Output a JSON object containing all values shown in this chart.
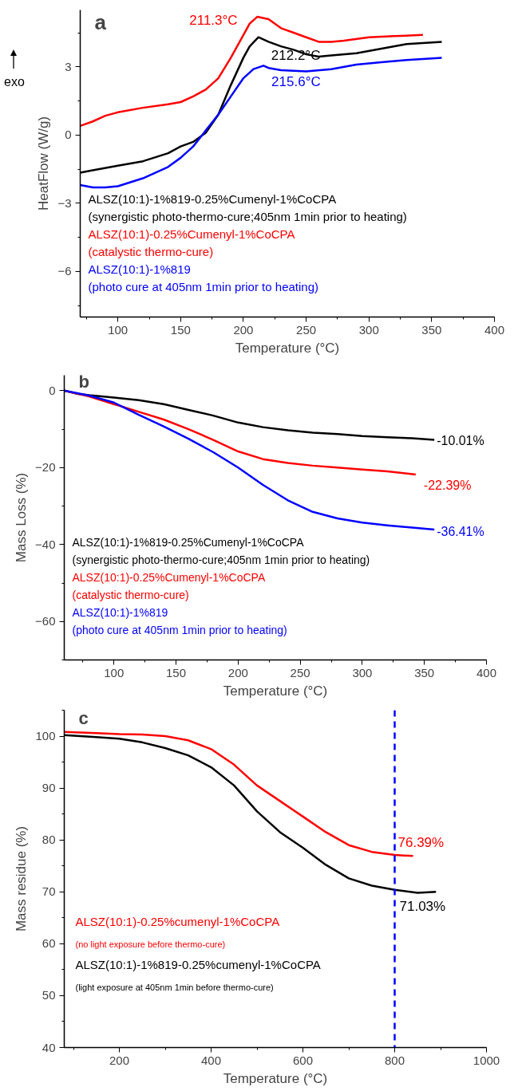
{
  "chart_data": [
    {
      "type": "line",
      "title": "a",
      "xlabel": "Temperature (°C)",
      "ylabel": "HeatFlow (W/g)",
      "xlim": [
        70,
        400
      ],
      "ylim": [
        -8,
        5.5
      ],
      "xticks": [
        100,
        150,
        200,
        250,
        300,
        350,
        400
      ],
      "yticks": [
        -6,
        -3,
        0,
        3
      ],
      "grid": false,
      "marker": "none",
      "line_style": "solid",
      "annotations": [
        {
          "text": "211.3°C",
          "x": 211,
          "y": 5.2
        },
        {
          "text": "212.2°C",
          "x": 212,
          "y": 4.3
        },
        {
          "text": "215.6°C",
          "x": 216,
          "y": 3.05
        },
        "exo"
      ],
      "series": [
        {
          "name": "ALSZ(10:1)-1%819-0.25%Cumenyl-1%CoCPA\n(synergistic photo-thermo-cure;405nm 1min prior to heating)",
          "color": "#000000",
          "x": [
            70,
            80,
            100,
            120,
            140,
            150,
            160,
            170,
            180,
            190,
            200,
            205,
            212,
            220,
            230,
            240,
            250,
            260,
            270,
            290,
            310,
            330,
            358
          ],
          "values": [
            -1.65,
            -1.55,
            -1.35,
            -1.15,
            -0.8,
            -0.5,
            -0.3,
            0.1,
            0.9,
            2.2,
            3.4,
            3.9,
            4.3,
            4.1,
            3.9,
            3.75,
            3.55,
            3.45,
            3.5,
            3.6,
            3.8,
            4.0,
            4.1
          ]
        },
        {
          "name": "ALSZ(10:1)-0.25%Cumenyl-1%CoCPA\n(catalystic thermo-cure)",
          "color": "#ff0000",
          "x": [
            70,
            80,
            90,
            100,
            120,
            140,
            150,
            160,
            170,
            180,
            190,
            200,
            205,
            211,
            220,
            230,
            240,
            250,
            260,
            270,
            280,
            300,
            320,
            343
          ],
          "values": [
            0.4,
            0.6,
            0.85,
            1.0,
            1.2,
            1.35,
            1.45,
            1.7,
            2.0,
            2.5,
            3.4,
            4.4,
            4.9,
            5.2,
            5.1,
            4.7,
            4.5,
            4.3,
            4.1,
            4.1,
            4.15,
            4.3,
            4.35,
            4.4
          ]
        },
        {
          "name": "ALSZ(10:1)-1%819\n(photo cure at 405nm 1min prior to heating)",
          "color": "#0000ff",
          "x": [
            70,
            80,
            90,
            100,
            120,
            140,
            150,
            160,
            170,
            180,
            190,
            200,
            208,
            216,
            220,
            230,
            250,
            270,
            290,
            310,
            330,
            358
          ],
          "values": [
            -2.2,
            -2.3,
            -2.3,
            -2.25,
            -1.9,
            -1.4,
            -1.0,
            -0.5,
            0.2,
            0.9,
            1.7,
            2.5,
            2.9,
            3.05,
            2.95,
            2.85,
            2.8,
            2.9,
            3.1,
            3.2,
            3.3,
            3.4
          ]
        }
      ]
    },
    {
      "type": "line",
      "title": "b",
      "xlabel": "Temperature (°C)",
      "ylabel": "Mass Loss (%)",
      "xlim": [
        60,
        400
      ],
      "ylim": [
        -70,
        4
      ],
      "xticks": [
        100,
        150,
        200,
        250,
        300,
        350,
        400
      ],
      "yticks": [
        -60,
        -40,
        -20,
        0
      ],
      "grid": false,
      "marker": "none",
      "line_style": "solid",
      "annotations": [
        {
          "text": "-10.01%",
          "x": 358,
          "y": -12.8
        },
        {
          "text": "-22.39%",
          "x": 343,
          "y": -21.8
        },
        {
          "text": "-36.41%",
          "x": 358,
          "y": -36.1
        }
      ],
      "series": [
        {
          "name": "ALSZ(10:1)-1%819-0.25%Cumenyl-1%CoCPA\n(synergistic photo-thermo-cure;405nm 1min prior to heating)",
          "color": "#000000",
          "x": [
            60,
            70,
            80,
            100,
            120,
            140,
            160,
            180,
            200,
            220,
            240,
            260,
            280,
            300,
            320,
            340,
            358
          ],
          "values": [
            0,
            -0.8,
            -1.2,
            -1.8,
            -2.5,
            -3.5,
            -5,
            -6.5,
            -8.3,
            -9.5,
            -10.3,
            -10.9,
            -11.3,
            -11.8,
            -12.1,
            -12.4,
            -12.8
          ]
        },
        {
          "name": "ALSZ(10:1)-0.25%Cumenyl-1%CoCPA\n(catalystic thermo-cure)",
          "color": "#ff0000",
          "x": [
            60,
            80,
            100,
            120,
            140,
            160,
            180,
            200,
            220,
            240,
            260,
            280,
            300,
            320,
            343
          ],
          "values": [
            0,
            -1.5,
            -3.5,
            -5.5,
            -7.5,
            -10,
            -12.8,
            -15.8,
            -17.8,
            -18.8,
            -19.5,
            -20.0,
            -20.5,
            -21.0,
            -21.8
          ]
        },
        {
          "name": "ALSZ(10:1)-1%819\n(photo cure at 405nm 1min prior to heating)",
          "color": "#0000ff",
          "x": [
            60,
            80,
            100,
            120,
            140,
            160,
            180,
            200,
            220,
            240,
            260,
            280,
            300,
            320,
            340,
            358
          ],
          "values": [
            0,
            -1.3,
            -3.1,
            -6.3,
            -9.3,
            -12.5,
            -16,
            -20,
            -24.5,
            -28.5,
            -31.5,
            -33.2,
            -34.3,
            -35,
            -35.6,
            -36.1
          ]
        }
      ]
    },
    {
      "type": "line",
      "title": "c",
      "xlabel": "Temperature (°C)",
      "ylabel": "Mass residue (%)",
      "xlim": [
        80,
        1000
      ],
      "ylim": [
        40,
        105
      ],
      "xticks": [
        200,
        400,
        600,
        800,
        1000
      ],
      "yticks": [
        40,
        50,
        60,
        70,
        80,
        90,
        100
      ],
      "grid": false,
      "marker": "none",
      "line_style": "solid",
      "annotations": [
        {
          "text": "76.39%",
          "x": 800,
          "y": 77.1
        },
        {
          "text": "71.03%",
          "x": 800,
          "y": 70.4
        }
      ],
      "ref_lines": [
        {
          "axis": "x",
          "value": 800,
          "label": null,
          "color": "#0000ff",
          "line_style": "dashed"
        }
      ],
      "series": [
        {
          "name": "ALSZ(10:1)-0.25%cumenyl-1%CoCPA\n(no light exposure before thermo-cure)",
          "color": "#ff0000",
          "x": [
            80,
            150,
            200,
            250,
            300,
            350,
            400,
            450,
            500,
            550,
            600,
            650,
            700,
            750,
            800,
            840
          ],
          "values": [
            100.8,
            100.6,
            100.4,
            100.3,
            100,
            99.2,
            97.5,
            94.5,
            90.5,
            87.5,
            84.5,
            81.5,
            79,
            77.7,
            77.1,
            76.9
          ]
        },
        {
          "name": "ALSZ(10:1)-1%819-0.25%cumenyl-1%CoCPA\n(light exposure at 405nm 1min before thermo-cure)",
          "color": "#000000",
          "x": [
            80,
            150,
            200,
            250,
            300,
            350,
            400,
            450,
            500,
            550,
            600,
            650,
            700,
            750,
            800,
            850,
            890
          ],
          "values": [
            100.2,
            99.8,
            99.5,
            98.8,
            97.7,
            96.3,
            94,
            90.5,
            85.5,
            81.5,
            78.5,
            75.2,
            72.6,
            71.2,
            70.4,
            69.8,
            70.0
          ]
        }
      ]
    }
  ]
}
